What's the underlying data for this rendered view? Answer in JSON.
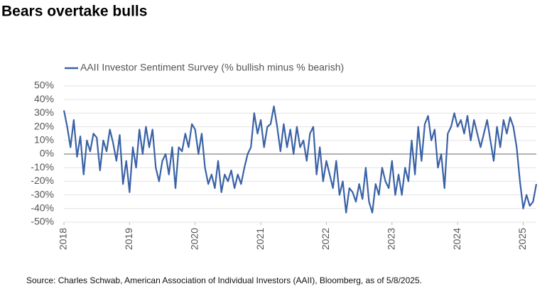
{
  "chart_data": {
    "type": "line",
    "title": "Bears overtake bulls",
    "source": "Source: Charles Schwab, American Association of Individual Investors (AAII), Bloomberg, as of 5/8/2025.",
    "x": [
      2018.0,
      2018.05,
      2018.1,
      2018.15,
      2018.2,
      2018.25,
      2018.3,
      2018.35,
      2018.4,
      2018.45,
      2018.5,
      2018.55,
      2018.6,
      2018.65,
      2018.7,
      2018.75,
      2018.8,
      2018.85,
      2018.9,
      2018.95,
      2019.0,
      2019.05,
      2019.1,
      2019.15,
      2019.2,
      2019.25,
      2019.3,
      2019.35,
      2019.4,
      2019.45,
      2019.5,
      2019.55,
      2019.6,
      2019.65,
      2019.7,
      2019.75,
      2019.8,
      2019.85,
      2019.9,
      2019.95,
      2020.0,
      2020.05,
      2020.1,
      2020.15,
      2020.2,
      2020.25,
      2020.3,
      2020.35,
      2020.4,
      2020.45,
      2020.5,
      2020.55,
      2020.6,
      2020.65,
      2020.7,
      2020.75,
      2020.8,
      2020.85,
      2020.9,
      2020.95,
      2021.0,
      2021.05,
      2021.1,
      2021.15,
      2021.2,
      2021.25,
      2021.3,
      2021.35,
      2021.4,
      2021.45,
      2021.5,
      2021.55,
      2021.6,
      2021.65,
      2021.7,
      2021.75,
      2021.8,
      2021.85,
      2021.9,
      2021.95,
      2022.0,
      2022.05,
      2022.1,
      2022.15,
      2022.2,
      2022.25,
      2022.3,
      2022.35,
      2022.4,
      2022.45,
      2022.5,
      2022.55,
      2022.6,
      2022.65,
      2022.7,
      2022.75,
      2022.8,
      2022.85,
      2022.9,
      2022.95,
      2023.0,
      2023.05,
      2023.1,
      2023.15,
      2023.2,
      2023.25,
      2023.3,
      2023.35,
      2023.4,
      2023.45,
      2023.5,
      2023.55,
      2023.6,
      2023.65,
      2023.7,
      2023.75,
      2023.8,
      2023.85,
      2023.9,
      2023.95,
      2024.0,
      2024.05,
      2024.1,
      2024.15,
      2024.2,
      2024.25,
      2024.3,
      2024.35,
      2024.4,
      2024.45,
      2024.5,
      2024.55,
      2024.6,
      2024.65,
      2024.7,
      2024.75,
      2024.8,
      2024.85,
      2024.9,
      2024.95,
      2025.0,
      2025.05,
      2025.1,
      2025.15,
      2025.2
    ],
    "series": [
      {
        "name": "AAII Investor Sentiment Survey (% bullish minus % bearish)",
        "color": "#3a62a6",
        "values": [
          32,
          20,
          5,
          25,
          -2,
          13,
          -15,
          10,
          2,
          15,
          12,
          -12,
          10,
          2,
          18,
          8,
          -5,
          14,
          -22,
          -5,
          -28,
          5,
          -10,
          18,
          0,
          20,
          5,
          18,
          -10,
          -20,
          -5,
          0,
          -15,
          5,
          -25,
          5,
          2,
          15,
          5,
          22,
          18,
          0,
          15,
          -10,
          -22,
          -15,
          -25,
          -5,
          -28,
          -15,
          -20,
          -12,
          -25,
          -15,
          -22,
          -10,
          0,
          5,
          30,
          15,
          25,
          5,
          20,
          22,
          35,
          20,
          2,
          22,
          5,
          18,
          0,
          20,
          5,
          10,
          -5,
          15,
          20,
          -15,
          5,
          -20,
          -5,
          -15,
          -25,
          -5,
          -30,
          -20,
          -43,
          -25,
          -28,
          -35,
          -22,
          -33,
          -10,
          -35,
          -43,
          -22,
          -30,
          -10,
          -20,
          -25,
          -5,
          -30,
          -15,
          -30,
          -10,
          -20,
          10,
          -15,
          20,
          -5,
          22,
          28,
          10,
          18,
          -10,
          0,
          -25,
          15,
          20,
          30,
          20,
          25,
          15,
          28,
          10,
          25,
          15,
          5,
          15,
          25,
          10,
          -5,
          20,
          5,
          25,
          15,
          27,
          20,
          5,
          -20,
          -40,
          -30,
          -38,
          -35,
          -22
        ]
      }
    ],
    "xlim": [
      2018,
      2025.2
    ],
    "xticks": [
      2018,
      2019,
      2020,
      2021,
      2022,
      2023,
      2024,
      2025
    ],
    "ylim": [
      -50,
      50
    ],
    "yticks": [
      {
        "value": -50,
        "label": "-50%"
      },
      {
        "value": -40,
        "label": "-40%"
      },
      {
        "value": -30,
        "label": "-30%"
      },
      {
        "value": -20,
        "label": "-20%"
      },
      {
        "value": -10,
        "label": "-10%"
      },
      {
        "value": 0,
        "label": "0%"
      },
      {
        "value": 10,
        "label": "10%"
      },
      {
        "value": 20,
        "label": "20%"
      },
      {
        "value": 30,
        "label": "30%"
      },
      {
        "value": 40,
        "label": "40%"
      },
      {
        "value": 50,
        "label": "50%"
      }
    ],
    "grid": true
  }
}
